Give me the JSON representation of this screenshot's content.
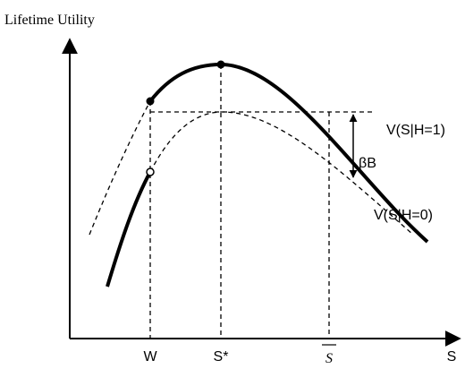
{
  "y_axis_label": "Lifetime Utility",
  "x_axis_label": "S",
  "x_markers": [
    "W",
    "S*",
    "S"
  ],
  "curves": [
    {
      "label": "V(S|H=1)"
    },
    {
      "label": "V(S|H=0)"
    }
  ],
  "gap_label": "βB"
}
